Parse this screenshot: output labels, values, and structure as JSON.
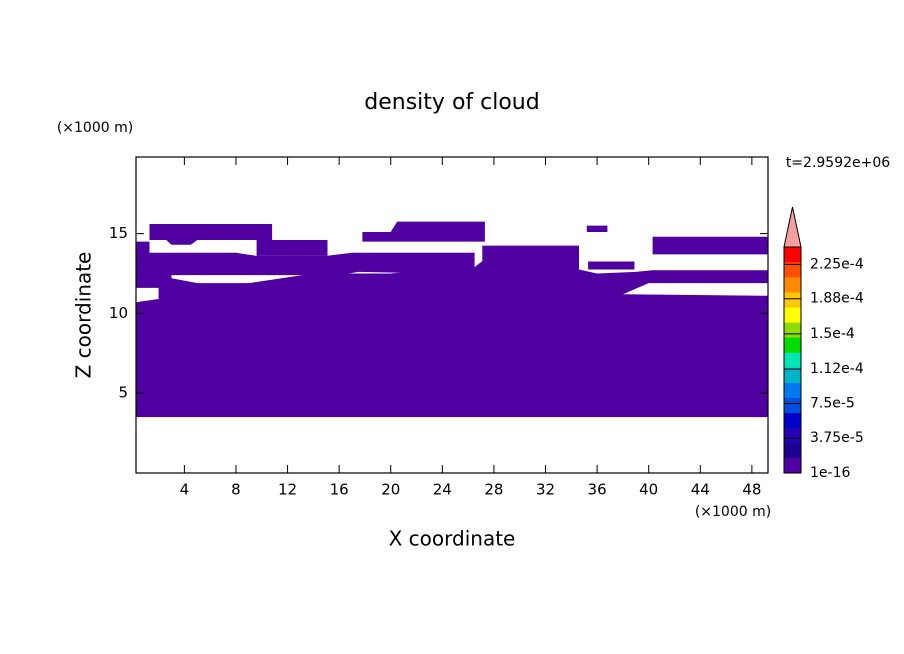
{
  "chart_data": {
    "type": "contour",
    "title": "density of cloud",
    "x_label": "X coordinate",
    "y_label": "Z coordinate",
    "x_unit": "(×1000 m)",
    "y_unit": "(×1000 m)",
    "time_label": "t=2.9592e+06",
    "xlim": [
      0.25,
      49.25
    ],
    "ylim": [
      0,
      19.8
    ],
    "xticks": [
      4,
      8,
      12,
      16,
      20,
      24,
      28,
      32,
      36,
      40,
      44,
      48
    ],
    "yticks": [
      5,
      10,
      15
    ],
    "cloud": {
      "color": "#5000a0",
      "regions": [
        [
          [
            1.3,
            14.6
          ],
          [
            1.3,
            15.6
          ],
          [
            10.8,
            15.6
          ],
          [
            10.8,
            14.6
          ],
          [
            5,
            14.6
          ],
          [
            4.5,
            14.3
          ],
          [
            3,
            14.3
          ],
          [
            2.6,
            14.6
          ]
        ],
        [
          [
            9.6,
            13.6
          ],
          [
            9.6,
            14.6
          ],
          [
            15.1,
            14.6
          ],
          [
            15.1,
            13.6
          ]
        ],
        [
          [
            17.8,
            14.5
          ],
          [
            17.8,
            15.1
          ],
          [
            20,
            15.1
          ],
          [
            20.5,
            15.75
          ],
          [
            27.3,
            15.75
          ],
          [
            27.3,
            14.5
          ]
        ],
        [
          [
            27.1,
            12.75
          ],
          [
            27.1,
            14.25
          ],
          [
            34.6,
            14.25
          ],
          [
            34.6,
            12.75
          ]
        ],
        [
          [
            35.2,
            15.1
          ],
          [
            35.2,
            15.5
          ],
          [
            36.8,
            15.5
          ],
          [
            36.8,
            15.1
          ]
        ],
        [
          [
            35.3,
            12.75
          ],
          [
            35.3,
            13.25
          ],
          [
            38.9,
            13.25
          ],
          [
            38.9,
            12.75
          ]
        ],
        [
          [
            40.3,
            13.7
          ],
          [
            40.3,
            14.8
          ],
          [
            49.25,
            14.8
          ],
          [
            49.25,
            13.7
          ]
        ],
        [
          [
            0.25,
            12.4
          ],
          [
            0.25,
            14.5
          ],
          [
            1.3,
            14.5
          ],
          [
            1.3,
            13.8
          ],
          [
            8,
            13.8
          ],
          [
            9.6,
            13.6
          ],
          [
            15,
            13.6
          ],
          [
            17,
            13.8
          ],
          [
            26.5,
            13.8
          ],
          [
            26.5,
            12.9
          ],
          [
            24,
            12.5
          ],
          [
            17.5,
            12.6
          ],
          [
            16,
            12.4
          ]
        ],
        [
          [
            0.25,
            3.5
          ],
          [
            0.25,
            10.7
          ],
          [
            2,
            10.9
          ],
          [
            2,
            11.6
          ],
          [
            0.25,
            11.6
          ],
          [
            0.25,
            12.9
          ],
          [
            3,
            12.9
          ],
          [
            3,
            12.2
          ],
          [
            5,
            11.9
          ],
          [
            9,
            11.9
          ],
          [
            14,
            12.5
          ],
          [
            20,
            12.5
          ],
          [
            24,
            12.8
          ],
          [
            26.5,
            12.9
          ],
          [
            27.3,
            13.4
          ],
          [
            29.5,
            13
          ],
          [
            34.6,
            12.75
          ],
          [
            36,
            12.5
          ],
          [
            39,
            12.6
          ],
          [
            40.3,
            12.7
          ],
          [
            49.25,
            12.7
          ],
          [
            49.25,
            11.9
          ],
          [
            40,
            11.9
          ],
          [
            38,
            11.2
          ],
          [
            49.25,
            11.1
          ],
          [
            49.25,
            3.5
          ]
        ]
      ]
    },
    "colorbar": {
      "lim": [
        1e-16,
        0.00024375
      ],
      "colors": [
        "#5000a0",
        "#1e0090",
        "#2800b4",
        "#0000c8",
        "#0050e0",
        "#0078f0",
        "#00b4c8",
        "#00e6b4",
        "#00dc00",
        "#8cdc00",
        "#ffff00",
        "#ffc800",
        "#ff8c00",
        "#ff5000",
        "#ff0000"
      ],
      "extend_color": "#f5a0a0",
      "ticks": [
        {
          "value": 1e-16,
          "label": "1e-16"
        },
        {
          "value": 3.75e-05,
          "label": "3.75e-5"
        },
        {
          "value": 7.5e-05,
          "label": "7.5e-5"
        },
        {
          "value": 0.000112,
          "label": "1.12e-4"
        },
        {
          "value": 0.00015,
          "label": "1.5e-4"
        },
        {
          "value": 0.000188,
          "label": "1.88e-4"
        },
        {
          "value": 0.000225,
          "label": "2.25e-4"
        }
      ]
    }
  }
}
